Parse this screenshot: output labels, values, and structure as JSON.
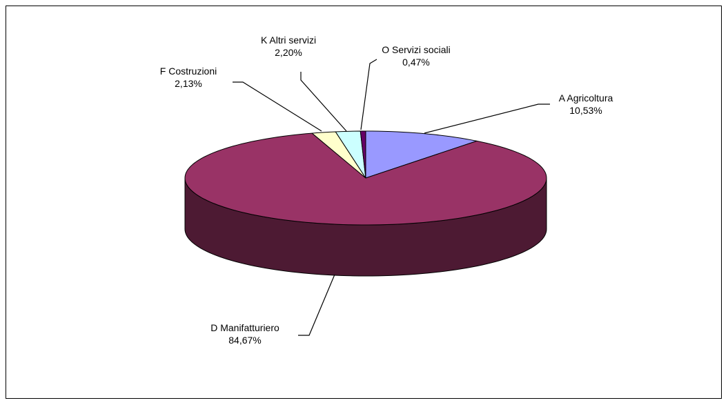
{
  "chart_data": {
    "type": "pie",
    "style": "3d",
    "start_angle_deg": 90,
    "direction": "clockwise",
    "slices": [
      {
        "label": "A  Agricoltura",
        "value_label": "10,53%",
        "value": 10.53,
        "color": "#9999ff",
        "side_color": "#4d4d80"
      },
      {
        "label": "D  Manifatturiero",
        "value_label": "84,67%",
        "value": 84.67,
        "color": "#993366",
        "side_color": "#4d1a33"
      },
      {
        "label": "F  Costruzioni",
        "value_label": "2,13%",
        "value": 2.13,
        "color": "#ffffcc",
        "side_color": "#808066"
      },
      {
        "label": "K  Altri servizi",
        "value_label": "2,20%",
        "value": 2.2,
        "color": "#ccffff",
        "side_color": "#668080"
      },
      {
        "label": "O  Servizi sociali",
        "value_label": "0,47%",
        "value": 0.47,
        "color": "#660066",
        "side_color": "#330033"
      }
    ],
    "legend": "none"
  }
}
